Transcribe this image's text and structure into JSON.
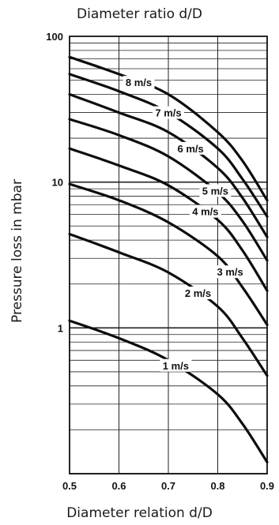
{
  "chart_data": {
    "type": "line",
    "title": "Diameter ratio d/D",
    "xlabel": "Diameter relation d/D",
    "ylabel": "Pressure loss in mbar",
    "y_scale": "log",
    "xlim": [
      0.5,
      0.9
    ],
    "ylim": [
      0.1,
      100
    ],
    "grid": true,
    "x_ticks": [
      "0.5",
      "0.6",
      "0.7",
      "0.8",
      "0.9"
    ],
    "y_ticks": [
      "1",
      "10",
      "100"
    ],
    "x_tick_values": [
      0.5,
      0.6,
      0.7,
      0.8,
      0.9
    ],
    "y_tick_values": [
      1,
      10,
      100
    ],
    "series": [
      {
        "name": "8 m/s",
        "x": [
          0.5,
          0.6,
          0.7,
          0.8,
          0.85,
          0.9
        ],
        "y": [
          72,
          55,
          40,
          22,
          14,
          7.5
        ]
      },
      {
        "name": "7 m/s",
        "x": [
          0.5,
          0.6,
          0.7,
          0.8,
          0.85,
          0.9
        ],
        "y": [
          55,
          42,
          30,
          17,
          10.5,
          5.8
        ]
      },
      {
        "name": "6 m/s",
        "x": [
          0.5,
          0.6,
          0.7,
          0.8,
          0.85,
          0.9
        ],
        "y": [
          40,
          30,
          22,
          12.5,
          7.8,
          4.2
        ]
      },
      {
        "name": "5 m/s",
        "x": [
          0.5,
          0.6,
          0.7,
          0.8,
          0.85,
          0.9
        ],
        "y": [
          27,
          21,
          15,
          8.5,
          5.4,
          2.9
        ]
      },
      {
        "name": "4 m/s",
        "x": [
          0.5,
          0.6,
          0.7,
          0.8,
          0.85,
          0.9
        ],
        "y": [
          17,
          13,
          9.5,
          5.5,
          3.4,
          1.8
        ]
      },
      {
        "name": "3 m/s",
        "x": [
          0.5,
          0.6,
          0.7,
          0.8,
          0.85,
          0.9
        ],
        "y": [
          9.7,
          7.5,
          5.3,
          3.1,
          1.9,
          1.05
        ]
      },
      {
        "name": "2 m/s",
        "x": [
          0.5,
          0.6,
          0.7,
          0.8,
          0.85,
          0.9
        ],
        "y": [
          4.4,
          3.3,
          2.4,
          1.4,
          0.85,
          0.47
        ]
      },
      {
        "name": "1 m/s",
        "x": [
          0.5,
          0.6,
          0.7,
          0.8,
          0.85,
          0.9
        ],
        "y": [
          1.12,
          0.85,
          0.6,
          0.35,
          0.22,
          0.12
        ]
      }
    ]
  }
}
